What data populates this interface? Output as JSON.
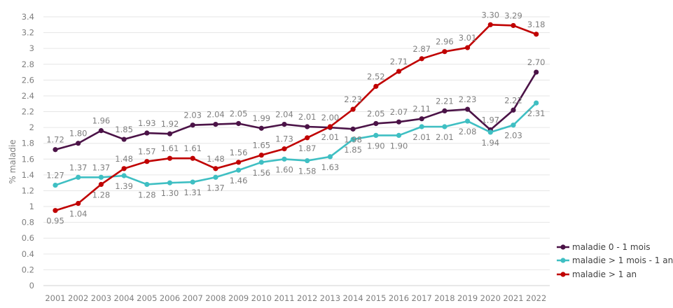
{
  "chart_data": {
    "type": "line",
    "ylabel": "% maladie",
    "ylim": [
      0,
      3.4
    ],
    "yticks": [
      "0",
      "0.2",
      "0.4",
      "0.6",
      "0.8",
      "1",
      "1.2",
      "1.4",
      "1.6",
      "1.8",
      "2",
      "2.2",
      "2.4",
      "2.6",
      "2.8",
      "3",
      "3.2",
      "3.4"
    ],
    "yticks_values": [
      0,
      0.2,
      0.4,
      0.6,
      0.8,
      1,
      1.2,
      1.4,
      1.6,
      1.8,
      2,
      2.2,
      2.4,
      2.6,
      2.8,
      3,
      3.2,
      3.4
    ],
    "categories": [
      "2001",
      "2002",
      "2003",
      "2004",
      "2005",
      "2006",
      "2007",
      "2008",
      "2009",
      "2010",
      "2011",
      "2012",
      "2013",
      "2014",
      "2015",
      "2016",
      "2017",
      "2018",
      "2019",
      "2020",
      "2021",
      "2022"
    ],
    "grid": true,
    "legend_position": "bottom-right",
    "series": [
      {
        "name": "maladie 0 - 1 mois",
        "color": "#4b1347",
        "values": [
          1.72,
          1.8,
          1.96,
          1.85,
          1.93,
          1.92,
          2.03,
          2.04,
          2.05,
          1.99,
          2.04,
          2.01,
          2.0,
          1.98,
          2.05,
          2.07,
          2.11,
          2.21,
          2.23,
          1.97,
          2.22,
          2.7
        ],
        "labels": [
          "1.72",
          "1.80",
          "1.96",
          "1.85",
          "1.93",
          "1.92",
          "2.03",
          "2.04",
          "2.05",
          "1.99",
          "2.04",
          "2.01",
          "2.00",
          "1.98",
          "2.05",
          "2.07",
          "2.11",
          "2.21",
          "2.23",
          "1.97",
          "2.22",
          "2.70"
        ],
        "label_pos": [
          "above",
          "above",
          "above",
          "above",
          "above",
          "above",
          "above",
          "above",
          "above",
          "above",
          "above",
          "above",
          "above",
          "below",
          "above",
          "above",
          "above",
          "above",
          "above",
          "above",
          "above",
          "above"
        ]
      },
      {
        "name": "maladie > 1 mois - 1 an",
        "color": "#3fbfc3",
        "values": [
          1.27,
          1.37,
          1.37,
          1.39,
          1.28,
          1.3,
          1.31,
          1.37,
          1.46,
          1.56,
          1.6,
          1.58,
          1.63,
          1.85,
          1.9,
          1.9,
          2.01,
          2.01,
          2.08,
          1.94,
          2.03,
          2.31
        ],
        "labels": [
          "1.27",
          "1.37",
          "1.37",
          "1.39",
          "1.28",
          "1.30",
          "1.31",
          "1.37",
          "1.46",
          "1.56",
          "1.60",
          "1.58",
          "1.63",
          "1.85",
          "1.90",
          "1.90",
          "2.01",
          "2.01",
          "2.08",
          "1.94",
          "2.03",
          "2.31"
        ],
        "label_pos": [
          "above",
          "above",
          "above",
          "below",
          "below",
          "below",
          "below",
          "below",
          "below",
          "below",
          "below",
          "below",
          "below",
          "below",
          "below",
          "below",
          "below",
          "below",
          "below",
          "below",
          "below",
          "below"
        ]
      },
      {
        "name": "maladie > 1 an",
        "color": "#c00000",
        "values": [
          0.95,
          1.04,
          1.28,
          1.48,
          1.57,
          1.61,
          1.61,
          1.48,
          1.56,
          1.65,
          1.73,
          1.87,
          2.01,
          2.23,
          2.52,
          2.71,
          2.87,
          2.96,
          3.01,
          3.3,
          3.29,
          3.18
        ],
        "labels": [
          "0.95",
          "1.04",
          "1.28",
          "1.48",
          "1.57",
          "1.61",
          "1.61",
          "1.48",
          "1.56",
          "1.65",
          "1.73",
          "1.87",
          "2.01",
          "2.23",
          "2.52",
          "2.71",
          "2.87",
          "2.96",
          "3.01",
          "3.30",
          "3.29",
          "3.18"
        ],
        "label_pos": [
          "below",
          "below",
          "below",
          "above",
          "above",
          "above",
          "above",
          "above",
          "above",
          "above",
          "above",
          "below",
          "below",
          "above",
          "above",
          "above",
          "above",
          "above",
          "above",
          "above",
          "above",
          "above"
        ]
      }
    ]
  }
}
